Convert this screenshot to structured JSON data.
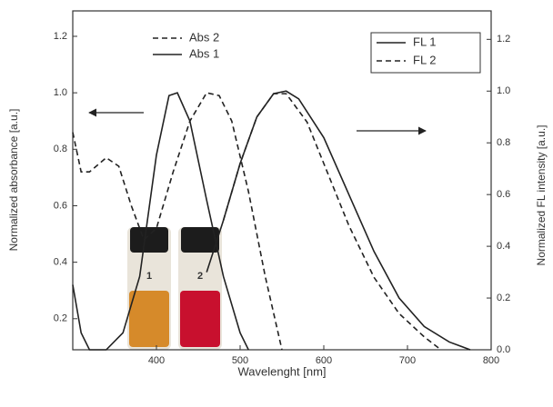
{
  "chart_data": {
    "type": "line",
    "xlabel": "Wavelenght [nm]",
    "ylabel": "Normalized absorbance [a.u.]",
    "y2label": "Normalized FL intensity [a.u.]",
    "xlim": [
      300,
      800
    ],
    "xticks": [
      400,
      500,
      600,
      700,
      800
    ],
    "ylim": [
      0.09,
      1.29
    ],
    "yticks": [
      0.2,
      0.4,
      0.6,
      0.8,
      {
        "value": 1,
        "label": "1.0"
      },
      1.2
    ],
    "y2lim": [
      0,
      1.31
    ],
    "y2ticks": [
      {
        "value": 0,
        "label": "0.0"
      },
      0.2,
      0.4,
      0.6,
      0.8,
      {
        "value": 1,
        "label": "1.0"
      },
      1.2
    ],
    "inset_labels": [
      "1",
      "2"
    ],
    "series": [
      {
        "name": "Abs 2",
        "color": "#222222",
        "dashed": true,
        "x": [
          300,
          310,
          320,
          340,
          355,
          370,
          385,
          400,
          420,
          440,
          460,
          475,
          490,
          510,
          530,
          550
        ],
        "values": [
          0.86,
          0.72,
          0.72,
          0.77,
          0.74,
          0.6,
          0.48,
          0.52,
          0.72,
          0.9,
          1.0,
          0.99,
          0.9,
          0.65,
          0.35,
          0.09
        ]
      },
      {
        "name": "Abs 1",
        "color": "#222222",
        "dashed": false,
        "x": [
          300,
          310,
          320,
          340,
          360,
          380,
          400,
          415,
          425,
          440,
          460,
          480,
          500,
          510
        ],
        "values": [
          0.32,
          0.15,
          0.09,
          0.09,
          0.15,
          0.35,
          0.78,
          0.99,
          1.0,
          0.9,
          0.62,
          0.35,
          0.15,
          0.09
        ]
      },
      {
        "name": "FL 1",
        "color": "#222222",
        "dashed": false,
        "axis": "y2",
        "x": [
          460,
          480,
          500,
          520,
          540,
          555,
          570,
          600,
          630,
          660,
          690,
          720,
          750,
          775
        ],
        "values": [
          0.3,
          0.5,
          0.72,
          0.9,
          0.99,
          1.0,
          0.97,
          0.82,
          0.6,
          0.38,
          0.2,
          0.09,
          0.03,
          0.0
        ]
      },
      {
        "name": "FL 2",
        "color": "#222222",
        "dashed": true,
        "axis": "y2",
        "x": [
          480,
          500,
          520,
          540,
          555,
          580,
          600,
          630,
          660,
          690,
          720,
          740
        ],
        "values": [
          0.5,
          0.72,
          0.9,
          0.99,
          0.99,
          0.88,
          0.72,
          0.48,
          0.28,
          0.14,
          0.05,
          0.0
        ]
      }
    ]
  }
}
